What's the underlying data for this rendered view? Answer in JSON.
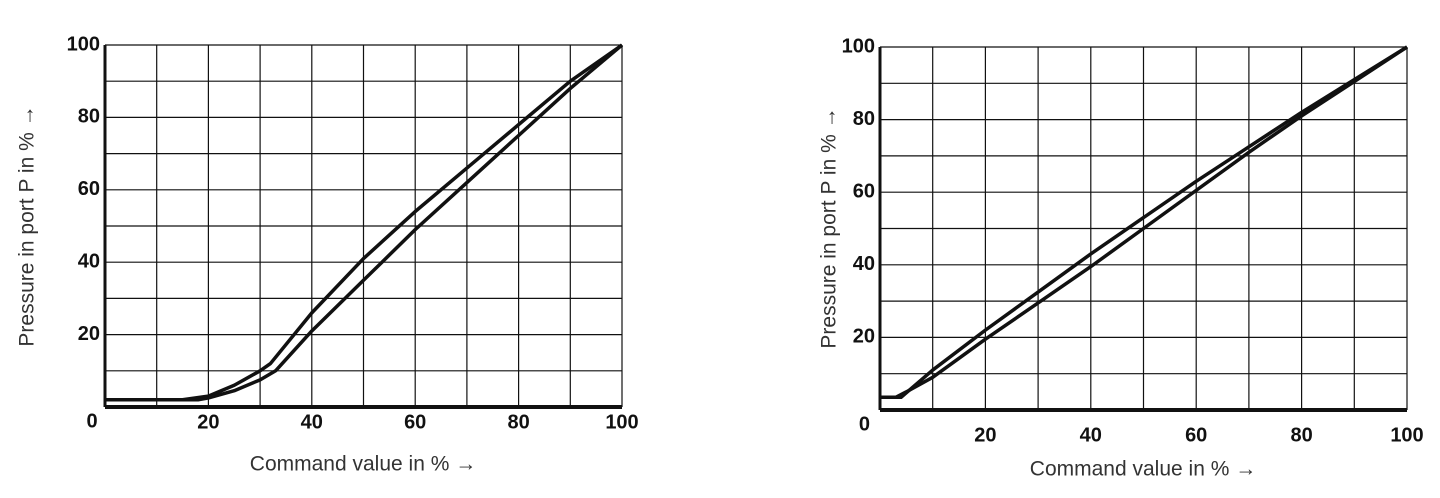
{
  "chart_data": [
    {
      "type": "line",
      "x_label": "Command value in % →",
      "y_label": "Pressure in port P in % →",
      "xlim": [
        0,
        100
      ],
      "ylim": [
        0,
        100
      ],
      "xticks": [
        0,
        20,
        40,
        60,
        80,
        100
      ],
      "yticks": [
        20,
        40,
        60,
        80,
        100
      ],
      "minor_xticks": [
        10,
        30,
        50,
        70,
        90
      ],
      "minor_yticks": [
        10,
        30,
        50,
        70,
        90
      ],
      "grid": true,
      "series": [
        {
          "color": "#111111",
          "x": [
            0,
            15,
            20,
            25,
            30,
            32,
            40,
            50,
            60,
            70,
            80,
            90,
            100
          ],
          "values": [
            2,
            2,
            3,
            6,
            10,
            12,
            26,
            41,
            54,
            66,
            78,
            90,
            100
          ]
        },
        {
          "color": "#111111",
          "x": [
            0,
            18,
            20,
            25,
            30,
            33,
            40,
            50,
            60,
            70,
            80,
            90,
            100
          ],
          "values": [
            2,
            2,
            2.5,
            4.5,
            7.5,
            10,
            21,
            35,
            49,
            62,
            75,
            88,
            100
          ]
        }
      ]
    },
    {
      "type": "line",
      "x_label": "Command value in % →",
      "y_label": "Pressure in port P in % →",
      "xlim": [
        0,
        100
      ],
      "ylim": [
        0,
        100
      ],
      "xticks": [
        20,
        40,
        60,
        80,
        100
      ],
      "yticks": [
        0,
        20,
        40,
        60,
        80,
        100
      ],
      "minor_xticks": [
        10,
        30,
        50,
        70,
        90
      ],
      "minor_yticks": [
        10,
        30,
        50,
        70,
        90
      ],
      "grid": true,
      "series": [
        {
          "color": "#111111",
          "x": [
            0,
            4,
            6,
            10,
            20,
            30,
            40,
            50,
            60,
            70,
            80,
            90,
            100
          ],
          "values": [
            3.5,
            3.5,
            6,
            11,
            22,
            32.5,
            43,
            53,
            63,
            72.5,
            82,
            91,
            100
          ]
        },
        {
          "color": "#111111",
          "x": [
            0,
            3,
            5,
            10,
            20,
            30,
            40,
            50,
            60,
            70,
            80,
            90,
            100
          ],
          "values": [
            3.5,
            3.5,
            5,
            9,
            19.5,
            29.5,
            39.5,
            50,
            60.5,
            71,
            81,
            90.5,
            100
          ]
        }
      ]
    }
  ]
}
